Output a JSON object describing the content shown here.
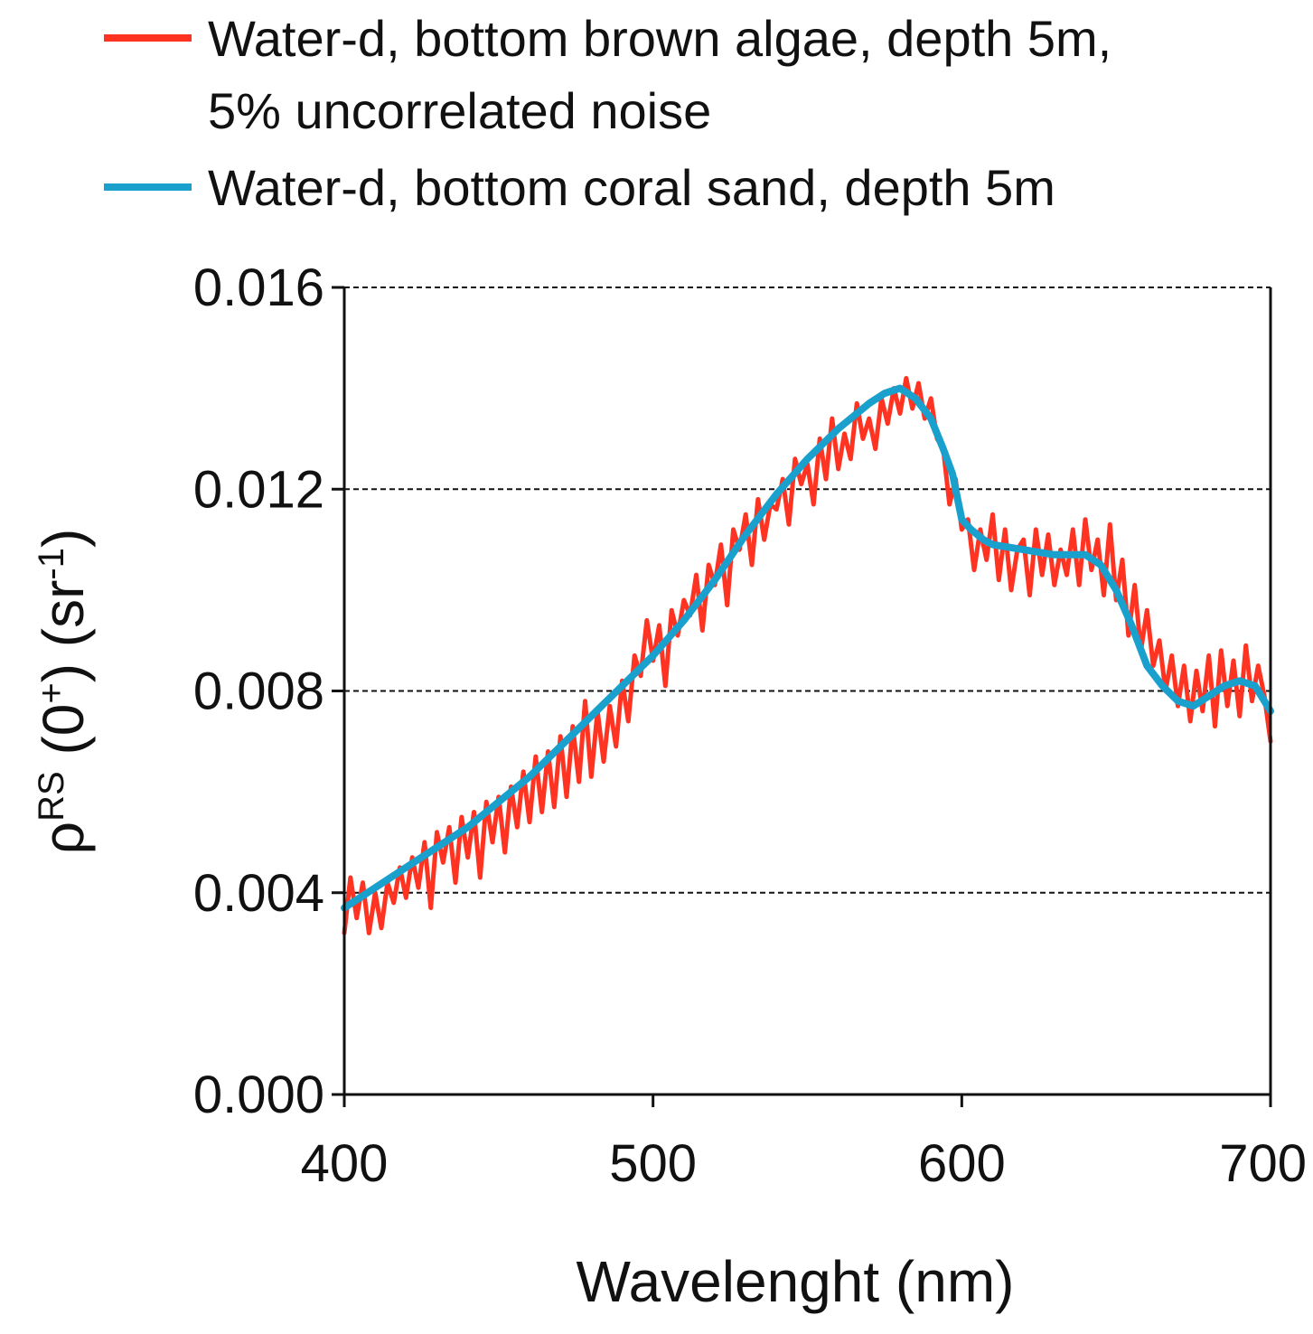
{
  "chart_data": {
    "type": "line",
    "title": "",
    "xlabel": "Wavelenght (nm)",
    "ylabel": {
      "base": "ρ",
      "sup": "RS",
      "mid": " (0",
      "sup2": "+",
      "mid2": ") (sr",
      "sup3": "-1",
      "end": ")"
    },
    "xlim": [
      400,
      700
    ],
    "ylim": [
      0.0,
      0.016
    ],
    "xticks": [
      400,
      500,
      600,
      700
    ],
    "xtick_labels": [
      "400",
      "500",
      "600",
      "700"
    ],
    "yticks": [
      0.0,
      0.004,
      0.008,
      0.012,
      0.016
    ],
    "ytick_labels": [
      "0.000",
      "0.004",
      "0.008",
      "0.012",
      "0.016"
    ],
    "grid": "horizontal-dashed",
    "legend_position": "top",
    "series": [
      {
        "name": "Water-d, bottom brown algae, depth 5m, 5% uncorrelated noise",
        "legend_lines": [
          "Water-d, bottom brown algae, depth 5m,",
          "5% uncorrelated noise"
        ],
        "color": "#ff3322",
        "x": [
          400,
          402,
          404,
          406,
          408,
          410,
          412,
          414,
          416,
          418,
          420,
          422,
          424,
          426,
          428,
          430,
          432,
          434,
          436,
          438,
          440,
          442,
          444,
          446,
          448,
          450,
          452,
          454,
          456,
          458,
          460,
          462,
          464,
          466,
          468,
          470,
          472,
          474,
          476,
          478,
          480,
          482,
          484,
          486,
          488,
          490,
          492,
          494,
          496,
          498,
          500,
          502,
          504,
          506,
          508,
          510,
          512,
          514,
          516,
          518,
          520,
          522,
          524,
          526,
          528,
          530,
          532,
          534,
          536,
          538,
          540,
          542,
          544,
          546,
          548,
          550,
          552,
          554,
          556,
          558,
          560,
          562,
          564,
          566,
          568,
          570,
          572,
          574,
          576,
          578,
          580,
          582,
          584,
          586,
          588,
          590,
          592,
          594,
          596,
          598,
          600,
          602,
          604,
          606,
          608,
          610,
          612,
          614,
          616,
          618,
          620,
          622,
          624,
          626,
          628,
          630,
          632,
          634,
          636,
          638,
          640,
          642,
          644,
          646,
          648,
          650,
          652,
          654,
          656,
          658,
          660,
          662,
          664,
          666,
          668,
          670,
          672,
          674,
          676,
          678,
          680,
          682,
          684,
          686,
          688,
          690,
          692,
          694,
          696,
          698,
          700
        ],
        "values": [
          0.0032,
          0.0043,
          0.0035,
          0.0042,
          0.0032,
          0.004,
          0.0033,
          0.0042,
          0.0038,
          0.0045,
          0.0039,
          0.0047,
          0.0041,
          0.005,
          0.0037,
          0.0052,
          0.0046,
          0.0053,
          0.0042,
          0.0055,
          0.0047,
          0.0056,
          0.0043,
          0.0058,
          0.005,
          0.0059,
          0.0048,
          0.0061,
          0.0053,
          0.0064,
          0.0054,
          0.0067,
          0.0056,
          0.0068,
          0.0057,
          0.0071,
          0.0059,
          0.0073,
          0.0062,
          0.0078,
          0.0063,
          0.0076,
          0.0066,
          0.0077,
          0.0069,
          0.0082,
          0.0074,
          0.0087,
          0.0083,
          0.0094,
          0.0086,
          0.0093,
          0.0081,
          0.0096,
          0.0091,
          0.0098,
          0.0095,
          0.0103,
          0.0092,
          0.0105,
          0.0101,
          0.0109,
          0.0097,
          0.0112,
          0.0108,
          0.0115,
          0.0105,
          0.0118,
          0.011,
          0.0117,
          0.0116,
          0.0122,
          0.0113,
          0.0126,
          0.0121,
          0.0125,
          0.0117,
          0.013,
          0.0122,
          0.0134,
          0.0124,
          0.0131,
          0.0126,
          0.0137,
          0.013,
          0.0134,
          0.0128,
          0.0138,
          0.0133,
          0.014,
          0.0135,
          0.0142,
          0.0136,
          0.0141,
          0.0134,
          0.0138,
          0.013,
          0.0128,
          0.0117,
          0.0122,
          0.0112,
          0.0114,
          0.0104,
          0.0112,
          0.0106,
          0.0115,
          0.0102,
          0.0112,
          0.01,
          0.0108,
          0.011,
          0.0099,
          0.0112,
          0.0103,
          0.0111,
          0.0101,
          0.0108,
          0.0103,
          0.0112,
          0.0101,
          0.0114,
          0.0104,
          0.011,
          0.0099,
          0.0113,
          0.0098,
          0.0106,
          0.0091,
          0.0101,
          0.0088,
          0.0096,
          0.0085,
          0.009,
          0.008,
          0.0087,
          0.0077,
          0.0085,
          0.0074,
          0.0084,
          0.0076,
          0.0087,
          0.0073,
          0.0088,
          0.0077,
          0.0086,
          0.0075,
          0.0089,
          0.0078,
          0.0085,
          0.0079,
          0.007
        ],
        "stroke_width": 5
      },
      {
        "name": "Water-d, bottom coral sand, depth 5m",
        "legend_lines": [
          "Water-d, bottom coral sand, depth 5m"
        ],
        "color": "#1aa0cc",
        "x": [
          400,
          410,
          420,
          430,
          440,
          450,
          460,
          470,
          480,
          490,
          500,
          510,
          520,
          530,
          540,
          550,
          560,
          570,
          575,
          580,
          585,
          590,
          594,
          597,
          600,
          603,
          607,
          610,
          620,
          630,
          640,
          645,
          650,
          655,
          660,
          665,
          670,
          675,
          680,
          685,
          690,
          695,
          700
        ],
        "values": [
          0.0037,
          0.0041,
          0.0045,
          0.0049,
          0.0053,
          0.0058,
          0.0063,
          0.0069,
          0.0075,
          0.0081,
          0.0087,
          0.0094,
          0.0102,
          0.0111,
          0.0119,
          0.0126,
          0.0132,
          0.0137,
          0.0139,
          0.014,
          0.0138,
          0.0134,
          0.0128,
          0.0123,
          0.0114,
          0.0112,
          0.011,
          0.0109,
          0.0108,
          0.0107,
          0.0107,
          0.0105,
          0.01,
          0.0093,
          0.0085,
          0.0081,
          0.0078,
          0.0077,
          0.0079,
          0.0081,
          0.0082,
          0.0081,
          0.0076
        ],
        "stroke_width": 8
      }
    ]
  }
}
